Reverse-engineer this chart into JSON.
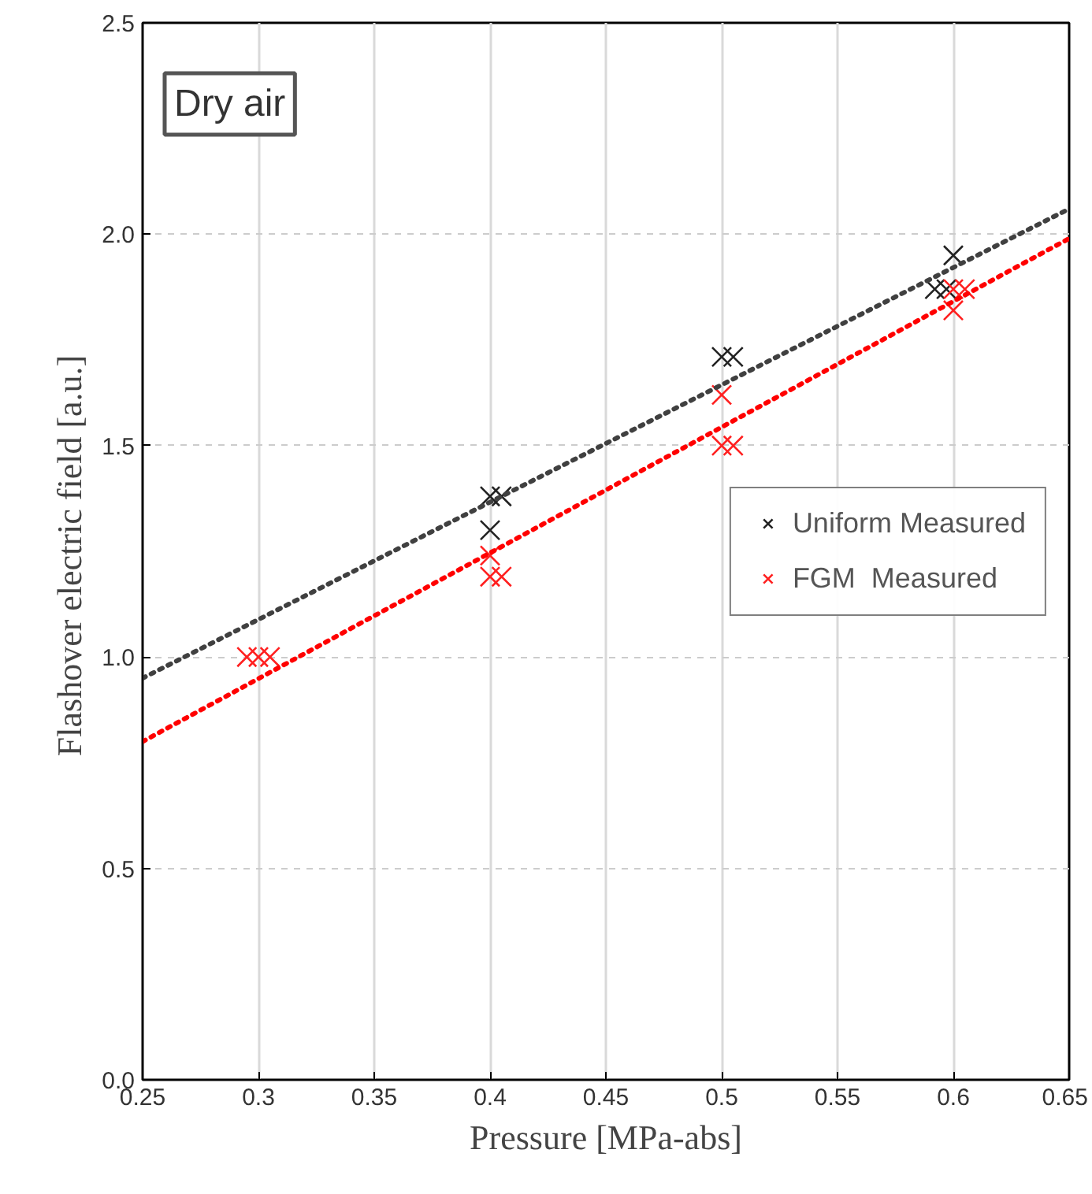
{
  "chart_data": {
    "type": "scatter",
    "xlabel": "Pressure [MPa-abs]",
    "ylabel": "Flashover electric field  [a.u.]",
    "annotations": [
      "Dry air"
    ],
    "xlim": [
      0.25,
      0.65
    ],
    "xticks": [
      0.25,
      0.3,
      0.35,
      0.4,
      0.45,
      0.5,
      0.55,
      0.6,
      0.65
    ],
    "ylim": [
      0,
      2.5
    ],
    "yticks": [
      {
        "value": 0,
        "label": "0.0"
      },
      0.5,
      {
        "value": 1,
        "label": "1.0"
      },
      1.5,
      {
        "value": 2,
        "label": "2.0"
      },
      2.5
    ],
    "grid": true,
    "legend": "right",
    "marker": "cross",
    "series": [
      {
        "name": "Uniform Measured",
        "color": "#222222",
        "x": [
          0.4,
          0.405,
          0.4,
          0.5,
          0.505,
          0.592,
          0.597,
          0.6
        ],
        "values": [
          1.38,
          1.38,
          1.3,
          1.71,
          1.71,
          1.87,
          1.87,
          1.95
        ]
      },
      {
        "name": "FGM  Measured",
        "color": "#ff2020",
        "x": [
          0.295,
          0.3,
          0.305,
          0.4,
          0.4,
          0.405,
          0.5,
          0.5,
          0.505,
          0.6,
          0.605,
          0.6
        ],
        "values": [
          1.0,
          1.0,
          1.0,
          1.24,
          1.19,
          1.19,
          1.62,
          1.5,
          1.5,
          1.87,
          1.87,
          1.82
        ]
      },
      {
        "type": "line",
        "line_style": "dotted",
        "marker": "none",
        "color": "#404040",
        "x": [
          0.25,
          0.65
        ],
        "values": [
          0.95,
          2.06
        ]
      },
      {
        "type": "line",
        "line_style": "dotted",
        "marker": "none",
        "color": "#ff0000",
        "x": [
          0.25,
          0.65
        ],
        "values": [
          0.8,
          1.99
        ]
      }
    ]
  }
}
